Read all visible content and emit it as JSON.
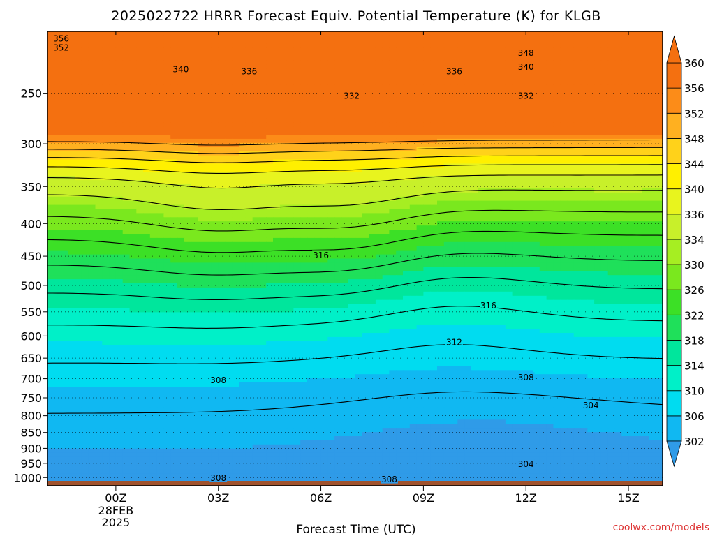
{
  "chart_data": {
    "type": "contour",
    "title": "2025022722 HRRR Forecast Equiv. Potential Temperature (K) for KLGB",
    "xlabel": "Forecast Time (UTC)",
    "ylabel": "",
    "x_ticks": [
      {
        "label": "00Z",
        "hour": 0,
        "date_line1": "28FEB",
        "date_line2": "2025"
      },
      {
        "label": "03Z",
        "hour": 3
      },
      {
        "label": "06Z",
        "hour": 6
      },
      {
        "label": "09Z",
        "hour": 9
      },
      {
        "label": "12Z",
        "hour": 12
      },
      {
        "label": "15Z",
        "hour": 15
      }
    ],
    "x_range_hours": [
      -2,
      16
    ],
    "y_axis_pressure_hpa": [
      1000,
      950,
      900,
      850,
      800,
      750,
      700,
      650,
      600,
      550,
      500,
      450,
      400,
      350,
      300,
      250
    ],
    "y_range_hpa": [
      1030,
      200
    ],
    "y_scale": "log",
    "colorbar": {
      "levels": [
        302,
        306,
        310,
        314,
        318,
        322,
        326,
        330,
        334,
        336,
        340,
        344,
        348,
        352,
        356,
        360
      ],
      "colors": [
        "#2f9be8",
        "#10b8f2",
        "#00dcf0",
        "#00f0c8",
        "#00e69c",
        "#1fe05a",
        "#3ce026",
        "#7ae81e",
        "#a6ee22",
        "#c8f02a",
        "#e8f41e",
        "#fff000",
        "#ffd21a",
        "#ffb020",
        "#fc8c18",
        "#f47010"
      ],
      "extend": "both"
    },
    "contour_levels": [
      304,
      308,
      312,
      316,
      320,
      324,
      328,
      332,
      336,
      340,
      344,
      348,
      352,
      356
    ],
    "contour_labels": [
      {
        "text": "356",
        "hour": -1.6,
        "p": 205
      },
      {
        "text": "352",
        "hour": -1.6,
        "p": 212
      },
      {
        "text": "340",
        "hour": 1.9,
        "p": 229
      },
      {
        "text": "336",
        "hour": 3.9,
        "p": 231
      },
      {
        "text": "336",
        "hour": 9.9,
        "p": 231
      },
      {
        "text": "348",
        "hour": 12.0,
        "p": 216
      },
      {
        "text": "340",
        "hour": 12.0,
        "p": 227
      },
      {
        "text": "332",
        "hour": 6.9,
        "p": 252
      },
      {
        "text": "332",
        "hour": 12.0,
        "p": 252
      },
      {
        "text": "316",
        "hour": 6.0,
        "p": 448
      },
      {
        "text": "316",
        "hour": 10.9,
        "p": 537
      },
      {
        "text": "312",
        "hour": 9.9,
        "p": 613
      },
      {
        "text": "308",
        "hour": 3.0,
        "p": 703
      },
      {
        "text": "308",
        "hour": 12.0,
        "p": 696
      },
      {
        "text": "304",
        "hour": 13.9,
        "p": 770
      },
      {
        "text": "304",
        "hour": 12.0,
        "p": 952
      },
      {
        "text": "308",
        "hour": 3.0,
        "p": 1000
      },
      {
        "text": "308",
        "hour": 8.0,
        "p": 1006
      }
    ],
    "ground": {
      "color": "#a0522d"
    },
    "credit": "coolwx.com/models"
  }
}
